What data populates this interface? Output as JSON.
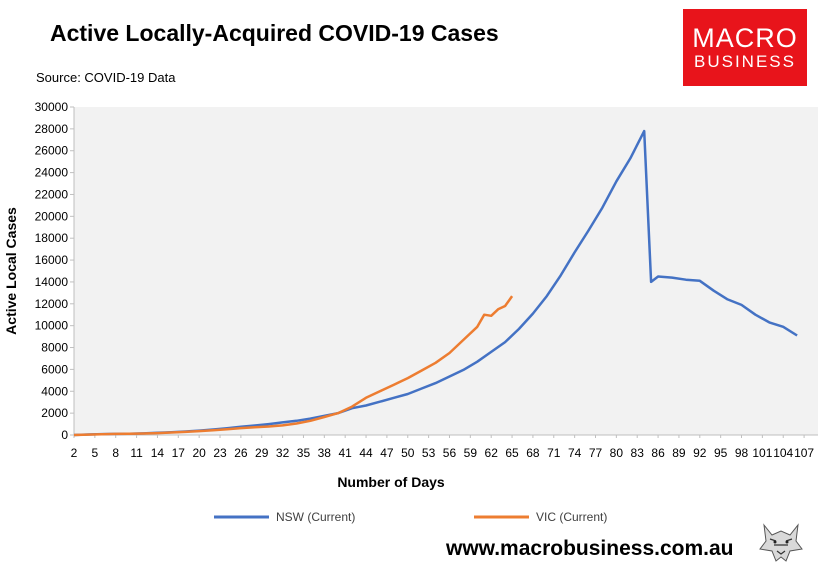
{
  "header": {
    "title": "Active Locally-Acquired COVID-19 Cases",
    "source": "Source: COVID-19 Data"
  },
  "logo": {
    "line1": "MACRO",
    "line2": "BUSINESS",
    "color": "#e8141b"
  },
  "footer": {
    "url": "www.macrobusiness.com.au",
    "icon": "wolf-icon"
  },
  "chart_data": {
    "type": "line",
    "title": "",
    "xlabel": "Number of Days",
    "ylabel": "Active Local Cases",
    "xlim": [
      2,
      109
    ],
    "ylim": [
      0,
      30000
    ],
    "yticks": [
      0,
      2000,
      4000,
      6000,
      8000,
      10000,
      12000,
      14000,
      16000,
      18000,
      20000,
      22000,
      24000,
      26000,
      28000,
      30000
    ],
    "xtick_labels": [
      "2",
      "5",
      "8",
      "11",
      "14",
      "17",
      "20",
      "23",
      "26",
      "29",
      "32",
      "35",
      "38",
      "41",
      "44",
      "47",
      "50",
      "53",
      "56",
      "59",
      "62",
      "65",
      "68",
      "71",
      "74",
      "77",
      "80",
      "83",
      "86",
      "89",
      "92",
      "95",
      "98",
      "101",
      "104",
      "107"
    ],
    "grid": false,
    "plot_background": "#f2f2f2",
    "legend": "bottom",
    "series": [
      {
        "name": "NSW (Current)",
        "color": "#4472c4",
        "x": [
          2,
          4,
          6,
          8,
          10,
          12,
          14,
          16,
          18,
          20,
          22,
          24,
          26,
          28,
          30,
          32,
          34,
          36,
          38,
          40,
          42,
          44,
          46,
          48,
          50,
          52,
          54,
          56,
          58,
          60,
          62,
          64,
          66,
          68,
          70,
          72,
          74,
          76,
          78,
          80,
          82,
          84,
          85,
          86,
          88,
          90,
          92,
          94,
          96,
          98,
          100,
          102,
          104,
          106
        ],
        "values": [
          0,
          50,
          80,
          100,
          120,
          150,
          200,
          260,
          320,
          400,
          500,
          620,
          750,
          870,
          1000,
          1150,
          1300,
          1500,
          1750,
          2000,
          2450,
          2700,
          3050,
          3400,
          3750,
          4250,
          4750,
          5350,
          5950,
          6700,
          7600,
          8500,
          9700,
          11100,
          12700,
          14600,
          16700,
          18700,
          20800,
          23200,
          25300,
          27800,
          14000,
          14500,
          14400,
          14200,
          14100,
          13200,
          12400,
          11900,
          11000,
          10300,
          9900,
          9100
        ]
      },
      {
        "name": "VIC (Current)",
        "color": "#ed7d31",
        "x": [
          2,
          4,
          6,
          8,
          10,
          12,
          14,
          16,
          18,
          20,
          22,
          24,
          26,
          28,
          30,
          32,
          34,
          36,
          38,
          40,
          42,
          44,
          46,
          48,
          50,
          52,
          54,
          56,
          58,
          60,
          61,
          62,
          63,
          64,
          65
        ],
        "values": [
          0,
          40,
          70,
          100,
          120,
          140,
          170,
          230,
          280,
          360,
          430,
          520,
          630,
          710,
          780,
          880,
          1050,
          1300,
          1650,
          2000,
          2600,
          3400,
          4000,
          4600,
          5200,
          5900,
          6600,
          7500,
          8700,
          9900,
          11000,
          10900,
          11500,
          11800,
          12700
        ]
      }
    ]
  }
}
